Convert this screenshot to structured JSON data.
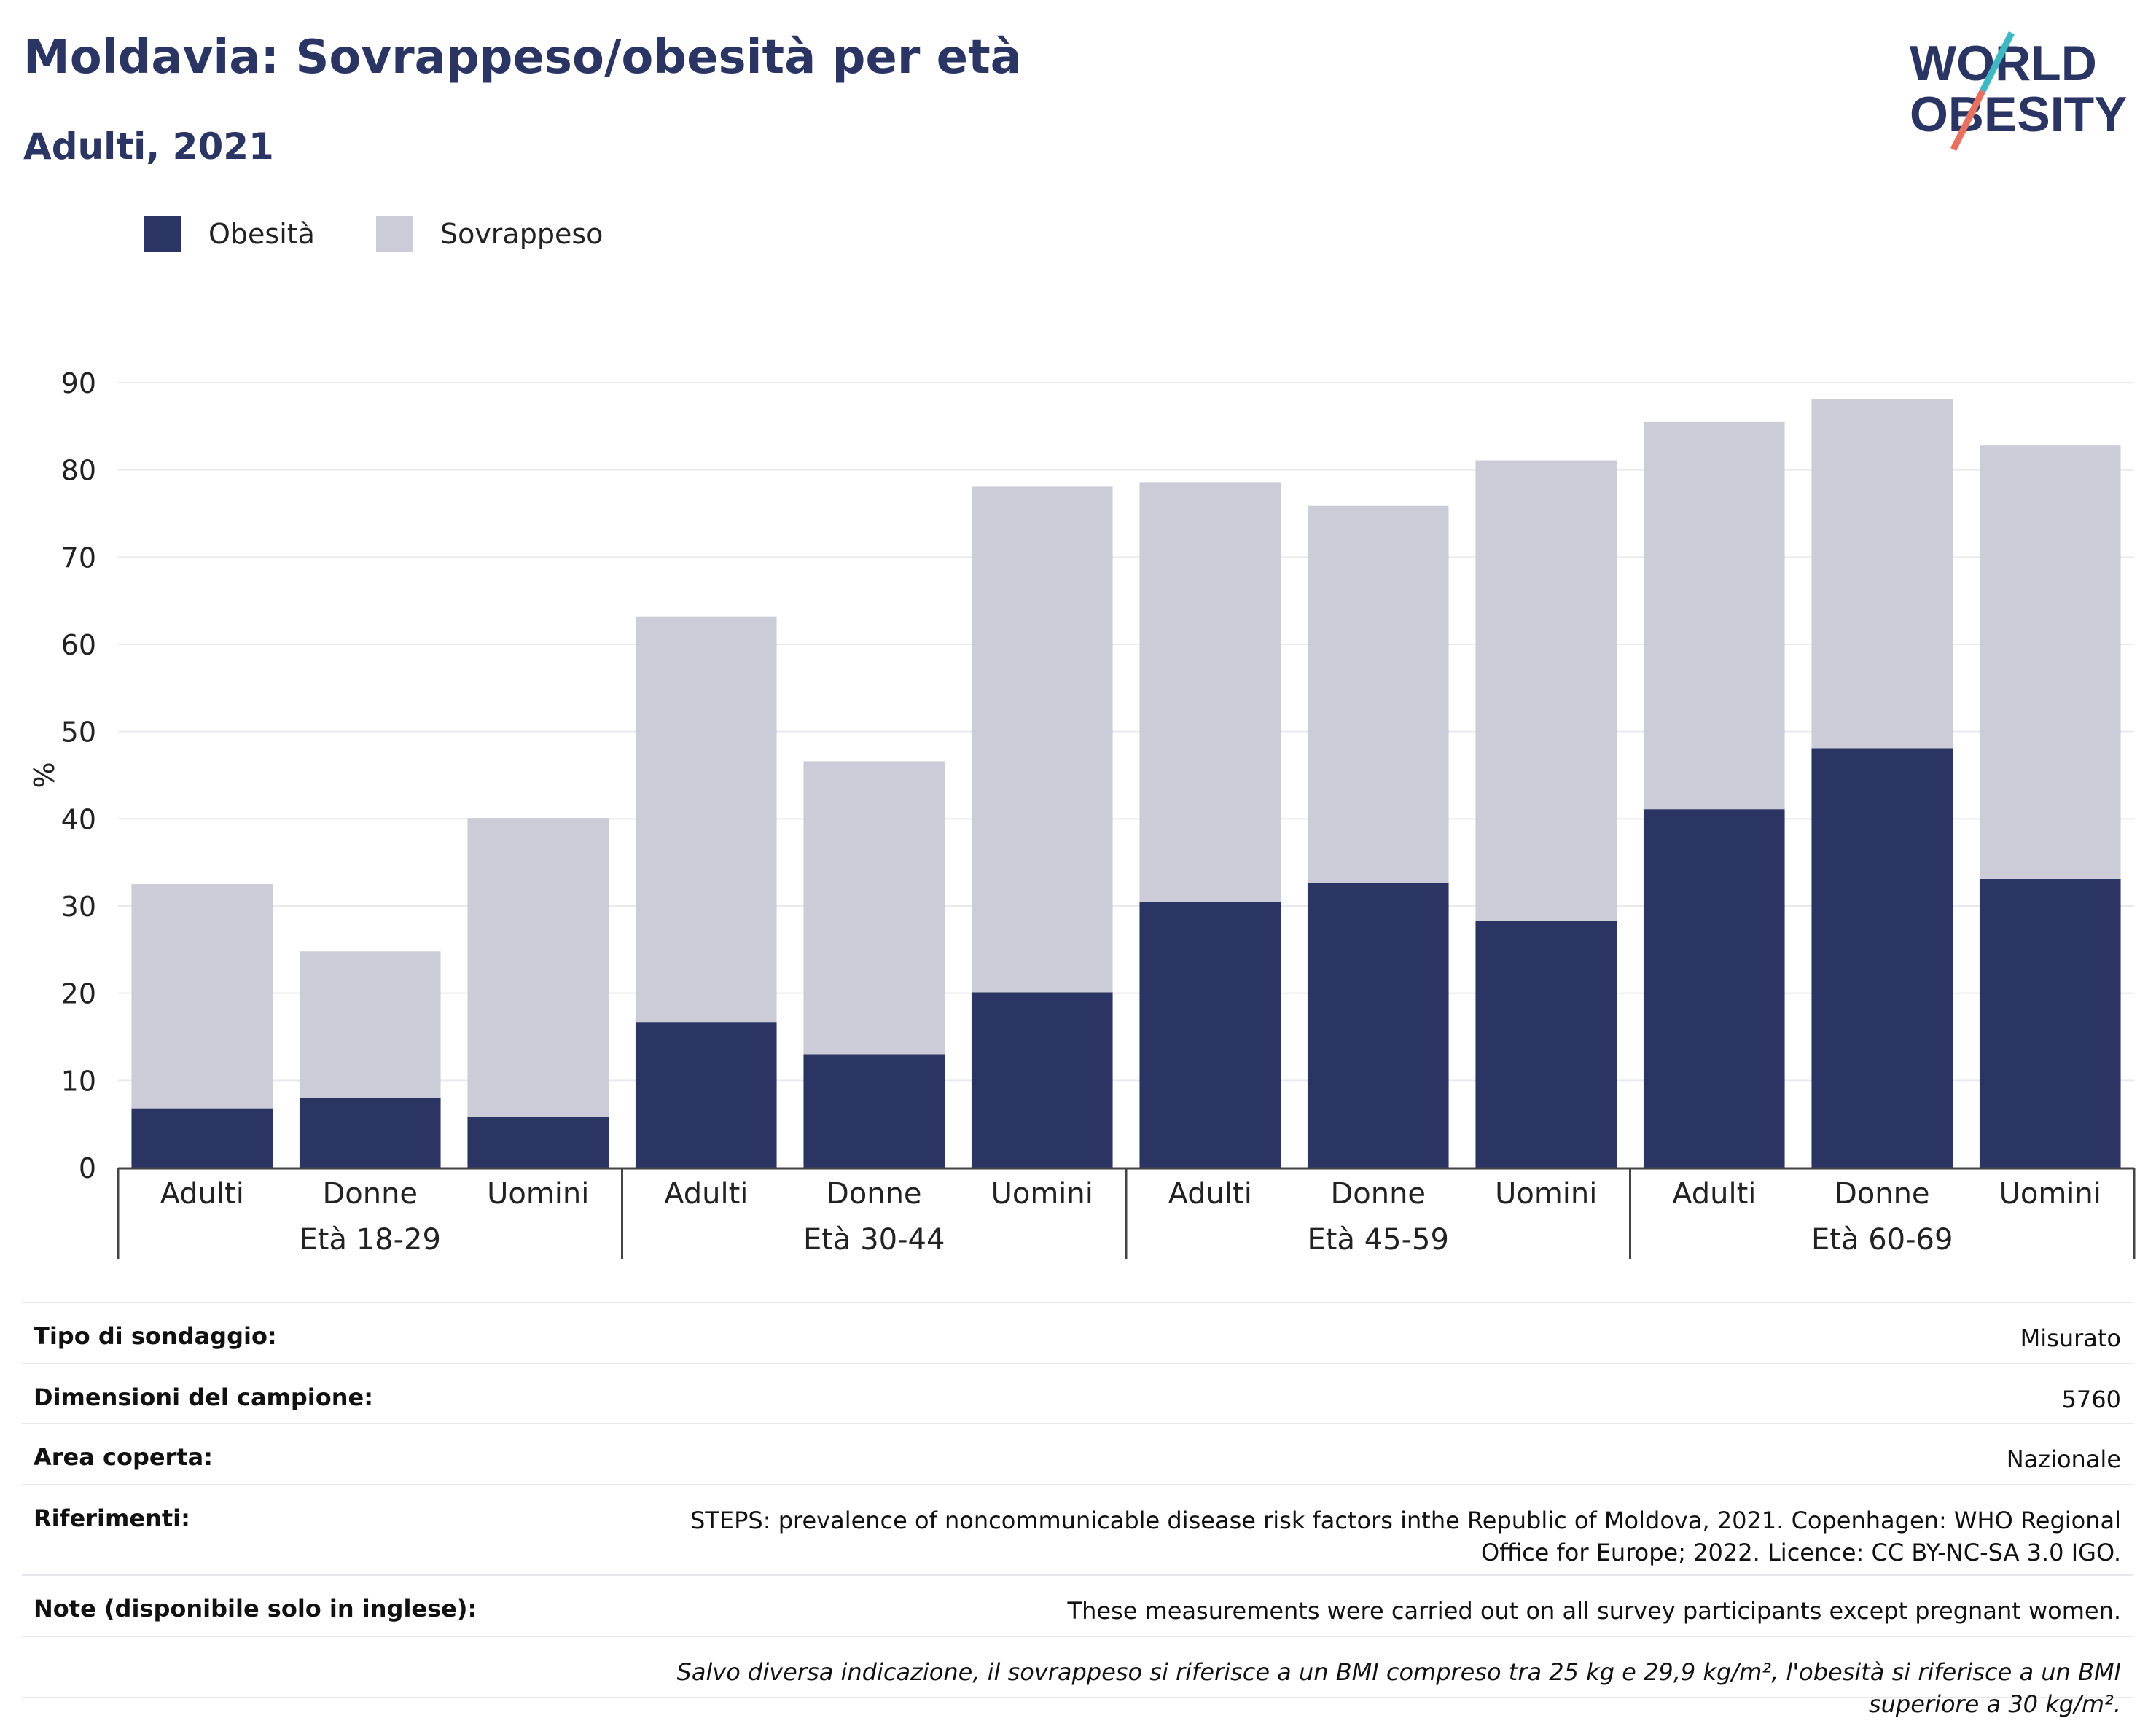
{
  "header": {
    "title": "Moldavia: Sovrappeso/obesità per età",
    "subtitle": "Adulti, 2021"
  },
  "logo": {
    "line1": "WORLD",
    "line2": "OBESITY"
  },
  "legend": [
    {
      "label": "Obesità",
      "color": "#2a3563"
    },
    {
      "label": "Sovrappeso",
      "color": "#cbccd8"
    }
  ],
  "chart_data": {
    "type": "bar",
    "stacked": true,
    "ylabel": "%",
    "ylim": [
      0,
      90
    ],
    "yticks": [
      0,
      10,
      20,
      30,
      40,
      50,
      60,
      70,
      80,
      90
    ],
    "groups": [
      "Età 18-29",
      "Età 30-44",
      "Età 45-59",
      "Età 60-69"
    ],
    "categories": [
      "Adulti",
      "Donne",
      "Uomini",
      "Adulti",
      "Donne",
      "Uomini",
      "Adulti",
      "Donne",
      "Uomini",
      "Adulti",
      "Donne",
      "Uomini"
    ],
    "series": [
      {
        "name": "Obesità",
        "color": "#2a3563",
        "values": [
          6.8,
          8.0,
          5.8,
          16.7,
          13.0,
          20.1,
          30.5,
          32.6,
          28.3,
          41.1,
          48.1,
          33.1
        ]
      },
      {
        "name": "Sovrappeso",
        "color": "#cbccd8",
        "values": [
          25.7,
          16.8,
          34.3,
          46.5,
          33.6,
          58.0,
          48.1,
          43.3,
          52.8,
          44.4,
          40.0,
          49.7
        ]
      }
    ],
    "grid": true
  },
  "info": {
    "rows": [
      {
        "label": "Tipo di sondaggio:",
        "value": "Misurato"
      },
      {
        "label": "Dimensioni del campione:",
        "value": "5760"
      },
      {
        "label": "Area coperta:",
        "value": "Nazionale"
      },
      {
        "label": "Riferimenti:",
        "value": "STEPS: prevalence of noncommunicable disease risk factors inthe Republic of Moldova, 2021. Copenhagen: WHO Regional Office for Europe; 2022. Licence: CC BY-NC-SA 3.0 IGO."
      },
      {
        "label": "Note (disponibile solo in inglese):",
        "value": "These measurements were carried out on all survey participants except pregnant women."
      }
    ],
    "footnote": "Salvo diversa indicazione, il sovrappeso si riferisce a un BMI compreso tra 25 kg e 29,9 kg/m², l'obesità si riferisce a un BMI superiore a 30 kg/m²."
  }
}
